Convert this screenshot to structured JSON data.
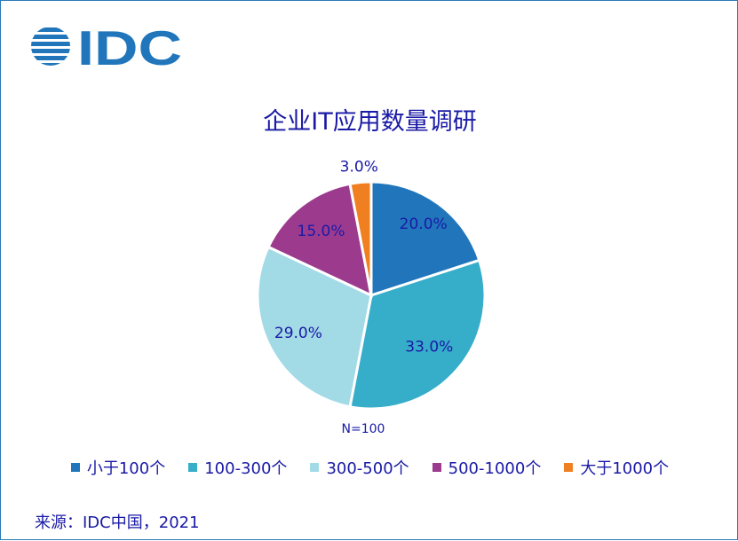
{
  "logo": {
    "text": "IDC"
  },
  "footer": {
    "source": "来源：IDC中国，2021"
  },
  "chart_data": {
    "type": "pie",
    "title": "企业IT应用数量调研",
    "note": "N=100",
    "legend_position": "bottom",
    "slices": [
      {
        "label": "小于100个",
        "value": 20.0,
        "display": "20.0%",
        "color": "#2176bb"
      },
      {
        "label": "100-300个",
        "value": 33.0,
        "display": "33.0%",
        "color": "#36adc9"
      },
      {
        "label": "300-500个",
        "value": 29.0,
        "display": "29.0%",
        "color": "#a2dae6"
      },
      {
        "label": "500-1000个",
        "value": 15.0,
        "display": "15.0%",
        "color": "#9c3b8e"
      },
      {
        "label": "大于1000个",
        "value": 3.0,
        "display": "3.0%",
        "color": "#f07f22"
      }
    ]
  }
}
